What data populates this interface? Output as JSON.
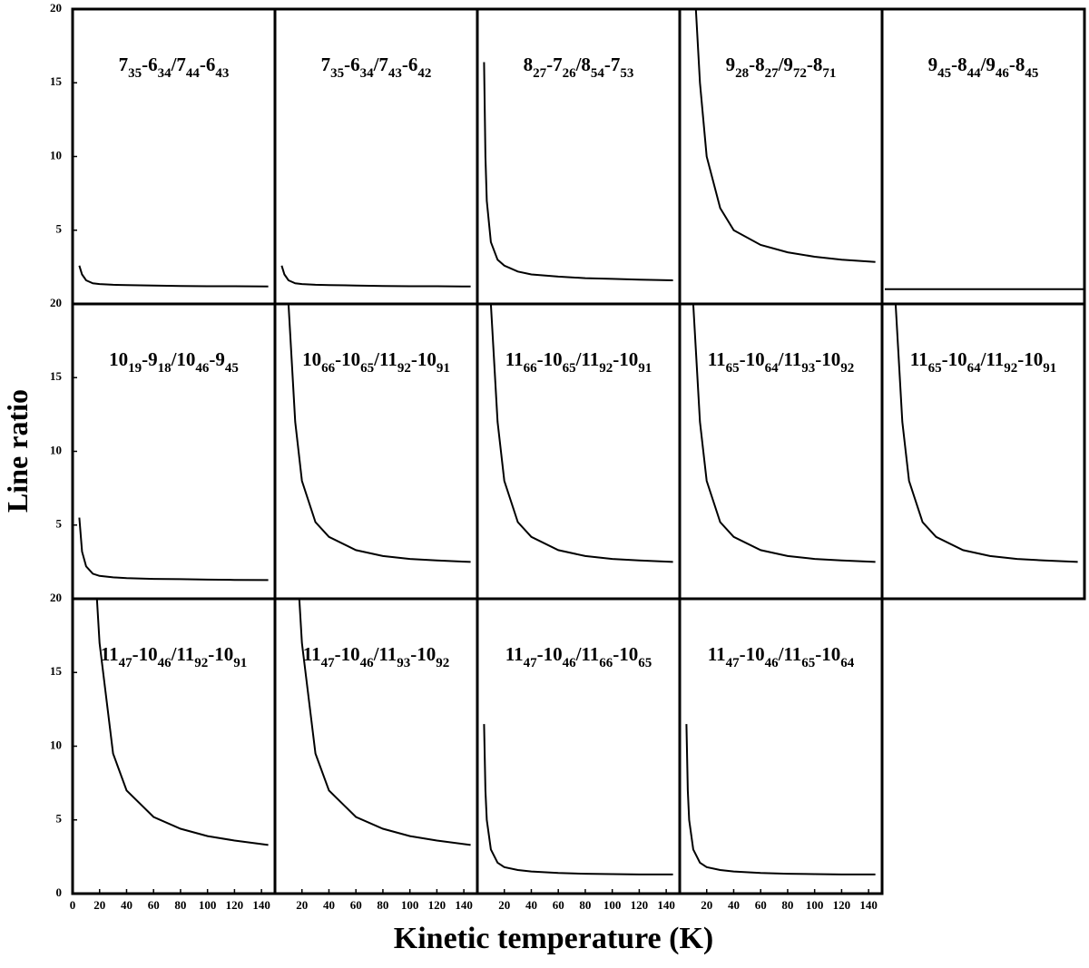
{
  "figure": {
    "ylabel": "Line ratio",
    "xlabel": "Kinetic temperature (K)"
  },
  "chart_data": [
    {
      "type": "line",
      "title": [
        "7",
        "35",
        "-6",
        "34",
        "/7",
        "44",
        "-6",
        "43"
      ],
      "xlim": [
        0,
        150
      ],
      "ylim": [
        0,
        20
      ],
      "yticks": [
        5,
        10,
        15,
        20
      ],
      "color": "#000000",
      "x": [
        5,
        7,
        10,
        15,
        20,
        30,
        40,
        60,
        80,
        100,
        120,
        145
      ],
      "values": [
        2.6,
        2.0,
        1.6,
        1.4,
        1.35,
        1.3,
        1.28,
        1.25,
        1.22,
        1.2,
        1.2,
        1.18
      ]
    },
    {
      "type": "line",
      "title": [
        "7",
        "35",
        "-6",
        "34",
        "/7",
        "43",
        "-6",
        "42"
      ],
      "xlim": [
        0,
        150
      ],
      "ylim": [
        0,
        20
      ],
      "color": "#000000",
      "x": [
        5,
        7,
        10,
        15,
        20,
        30,
        40,
        60,
        80,
        100,
        120,
        145
      ],
      "values": [
        2.6,
        2.0,
        1.6,
        1.4,
        1.35,
        1.3,
        1.28,
        1.25,
        1.22,
        1.2,
        1.2,
        1.18
      ]
    },
    {
      "type": "line",
      "title": [
        "8",
        "27",
        "-7",
        "26",
        "/8",
        "54",
        "-7",
        "53"
      ],
      "xlim": [
        0,
        150
      ],
      "ylim": [
        0,
        20
      ],
      "color": "#000000",
      "x": [
        5,
        6,
        7,
        10,
        15,
        20,
        30,
        40,
        60,
        80,
        100,
        120,
        145
      ],
      "values": [
        16.4,
        10,
        7,
        4.2,
        3,
        2.6,
        2.2,
        2.0,
        1.85,
        1.75,
        1.7,
        1.65,
        1.6
      ]
    },
    {
      "type": "line",
      "title": [
        "9",
        "28",
        "-8",
        "27",
        "/9",
        "72",
        "-8",
        "71"
      ],
      "xlim": [
        0,
        150
      ],
      "ylim": [
        0,
        20
      ],
      "color": "#000000",
      "x": [
        12,
        15,
        20,
        30,
        40,
        60,
        80,
        100,
        120,
        145
      ],
      "values": [
        20,
        15,
        10,
        6.5,
        5,
        4,
        3.5,
        3.2,
        3.0,
        2.85
      ]
    },
    {
      "type": "line",
      "title": [
        "9",
        "45",
        "-8",
        "44",
        "/9",
        "46",
        "-8",
        "45"
      ],
      "xlim": [
        0,
        150
      ],
      "ylim": [
        0,
        20
      ],
      "color": "#000000",
      "x": [
        2,
        150
      ],
      "values": [
        1,
        1
      ]
    },
    {
      "type": "line",
      "title": [
        "10",
        "19",
        "-9",
        "18",
        "/10",
        "46",
        "-9",
        "45"
      ],
      "xlim": [
        0,
        150
      ],
      "ylim": [
        0,
        20
      ],
      "yticks": [
        5,
        10,
        15,
        20
      ],
      "color": "#000000",
      "x": [
        5,
        7,
        10,
        15,
        20,
        30,
        40,
        60,
        80,
        100,
        120,
        145
      ],
      "values": [
        5.5,
        3.2,
        2.2,
        1.7,
        1.55,
        1.45,
        1.4,
        1.35,
        1.33,
        1.3,
        1.28,
        1.27
      ]
    },
    {
      "type": "line",
      "title": [
        "10",
        "66",
        "-10",
        "65",
        "/11",
        "92",
        "-10",
        "91"
      ],
      "xlim": [
        0,
        150
      ],
      "ylim": [
        0,
        20
      ],
      "color": "#000000",
      "x": [
        10,
        15,
        20,
        30,
        40,
        60,
        80,
        100,
        120,
        145
      ],
      "values": [
        20,
        12,
        8,
        5.2,
        4.2,
        3.3,
        2.9,
        2.7,
        2.6,
        2.5
      ]
    },
    {
      "type": "line",
      "title": [
        "11",
        "66",
        "-10",
        "65",
        "/11",
        "92",
        "-10",
        "91"
      ],
      "xlim": [
        0,
        150
      ],
      "ylim": [
        0,
        20
      ],
      "color": "#000000",
      "x": [
        10,
        15,
        20,
        30,
        40,
        60,
        80,
        100,
        120,
        145
      ],
      "values": [
        20,
        12,
        8,
        5.2,
        4.2,
        3.3,
        2.9,
        2.7,
        2.6,
        2.5
      ]
    },
    {
      "type": "line",
      "title": [
        "11",
        "65",
        "-10",
        "64",
        "/11",
        "93",
        "-10",
        "92"
      ],
      "xlim": [
        0,
        150
      ],
      "ylim": [
        0,
        20
      ],
      "color": "#000000",
      "x": [
        10,
        15,
        20,
        30,
        40,
        60,
        80,
        100,
        120,
        145
      ],
      "values": [
        20,
        12,
        8,
        5.2,
        4.2,
        3.3,
        2.9,
        2.7,
        2.6,
        2.5
      ]
    },
    {
      "type": "line",
      "title": [
        "11",
        "65",
        "-10",
        "64",
        "/11",
        "92",
        "-10",
        "91"
      ],
      "xlim": [
        0,
        150
      ],
      "ylim": [
        0,
        20
      ],
      "color": "#000000",
      "x": [
        10,
        15,
        20,
        30,
        40,
        60,
        80,
        100,
        120,
        145
      ],
      "values": [
        20,
        12,
        8,
        5.2,
        4.2,
        3.3,
        2.9,
        2.7,
        2.6,
        2.5
      ]
    },
    {
      "type": "line",
      "title": [
        "11",
        "47",
        "-10",
        "46",
        "/11",
        "92",
        "-10",
        "91"
      ],
      "xlim": [
        0,
        150
      ],
      "ylim": [
        0,
        20
      ],
      "xticks": [
        0,
        20,
        40,
        60,
        80,
        100,
        120,
        140
      ],
      "yticks": [
        0,
        5,
        10,
        15,
        20
      ],
      "color": "#000000",
      "x": [
        18,
        20,
        30,
        40,
        60,
        80,
        100,
        120,
        145
      ],
      "values": [
        20,
        17,
        9.5,
        7,
        5.2,
        4.4,
        3.9,
        3.6,
        3.3
      ]
    },
    {
      "type": "line",
      "title": [
        "11",
        "47",
        "-10",
        "46",
        "/11",
        "93",
        "-10",
        "92"
      ],
      "xlim": [
        0,
        150
      ],
      "ylim": [
        0,
        20
      ],
      "xticks": [
        20,
        40,
        60,
        80,
        100,
        120,
        140
      ],
      "color": "#000000",
      "x": [
        18,
        20,
        30,
        40,
        60,
        80,
        100,
        120,
        145
      ],
      "values": [
        20,
        17,
        9.5,
        7,
        5.2,
        4.4,
        3.9,
        3.6,
        3.3
      ]
    },
    {
      "type": "line",
      "title": [
        "11",
        "47",
        "-10",
        "46",
        "/11",
        "66",
        "-10",
        "65"
      ],
      "xlim": [
        0,
        150
      ],
      "ylim": [
        0,
        20
      ],
      "xticks": [
        20,
        40,
        60,
        80,
        100,
        120,
        140
      ],
      "color": "#000000",
      "x": [
        5,
        6,
        7,
        10,
        15,
        20,
        30,
        40,
        60,
        80,
        100,
        120,
        145
      ],
      "values": [
        11.5,
        7,
        5,
        3,
        2.1,
        1.8,
        1.6,
        1.5,
        1.4,
        1.35,
        1.32,
        1.3,
        1.3
      ]
    },
    {
      "type": "line",
      "title": [
        "11",
        "47",
        "-10",
        "46",
        "/11",
        "65",
        "-10",
        "64"
      ],
      "xlim": [
        0,
        150
      ],
      "ylim": [
        0,
        20
      ],
      "xticks": [
        20,
        40,
        60,
        80,
        100,
        120,
        140
      ],
      "color": "#000000",
      "x": [
        5,
        6,
        7,
        10,
        15,
        20,
        30,
        40,
        60,
        80,
        100,
        120,
        145
      ],
      "values": [
        11.5,
        7,
        5,
        3,
        2.1,
        1.8,
        1.6,
        1.5,
        1.4,
        1.35,
        1.32,
        1.3,
        1.3
      ]
    }
  ]
}
